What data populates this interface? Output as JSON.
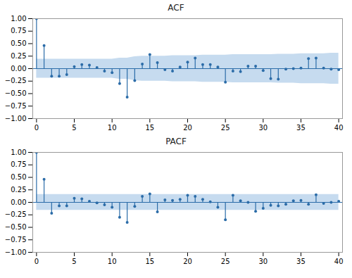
{
  "chart_data": [
    {
      "type": "stem",
      "title": "ACF",
      "x": [
        0,
        1,
        2,
        3,
        4,
        5,
        6,
        7,
        8,
        9,
        10,
        11,
        12,
        13,
        14,
        15,
        16,
        17,
        18,
        19,
        20,
        21,
        22,
        23,
        24,
        25,
        26,
        27,
        28,
        29,
        30,
        31,
        32,
        33,
        34,
        35,
        36,
        37,
        38,
        39,
        40
      ],
      "values": [
        1.0,
        0.46,
        -0.15,
        -0.15,
        -0.12,
        0.04,
        0.08,
        0.07,
        0.02,
        -0.05,
        -0.08,
        -0.3,
        -0.57,
        -0.24,
        0.09,
        0.28,
        0.12,
        -0.02,
        -0.05,
        0.03,
        0.13,
        0.21,
        0.08,
        0.08,
        0.03,
        -0.27,
        -0.05,
        -0.06,
        0.05,
        0.05,
        -0.04,
        -0.2,
        -0.21,
        -0.01,
        0.0,
        0.01,
        0.2,
        0.21,
        0.01,
        -0.01,
        -0.02
      ],
      "color": "#2b6ca8",
      "confidence_band": {
        "upper": [
          0.19,
          0.19,
          0.19,
          0.19,
          0.19,
          0.19,
          0.19,
          0.19,
          0.19,
          0.19,
          0.19,
          0.21,
          0.21,
          0.24,
          0.25,
          0.25,
          0.25,
          0.25,
          0.26,
          0.26,
          0.26,
          0.26,
          0.27,
          0.27,
          0.27,
          0.27,
          0.28,
          0.28,
          0.28,
          0.28,
          0.28,
          0.28,
          0.29,
          0.29,
          0.29,
          0.3,
          0.3,
          0.3,
          0.3,
          0.31,
          0.31
        ],
        "lower": [
          -0.19,
          -0.19,
          -0.19,
          -0.19,
          -0.19,
          -0.19,
          -0.19,
          -0.19,
          -0.19,
          -0.19,
          -0.19,
          -0.21,
          -0.21,
          -0.24,
          -0.25,
          -0.25,
          -0.25,
          -0.25,
          -0.26,
          -0.26,
          -0.26,
          -0.26,
          -0.27,
          -0.27,
          -0.27,
          -0.27,
          -0.28,
          -0.28,
          -0.28,
          -0.28,
          -0.28,
          -0.28,
          -0.29,
          -0.29,
          -0.29,
          -0.3,
          -0.3,
          -0.3,
          -0.3,
          -0.31,
          -0.31
        ],
        "color": "#c6dbef"
      },
      "xlim": [
        -0.5,
        40.5
      ],
      "xticks": [
        0,
        5,
        10,
        15,
        20,
        25,
        30,
        35,
        40
      ],
      "ylim": [
        -1.0,
        1.0
      ],
      "yticks": [
        {
          "value": -1.0,
          "label": "−1.00"
        },
        {
          "value": -0.75,
          "label": "−0.75"
        },
        {
          "value": -0.5,
          "label": "−0.50"
        },
        {
          "value": -0.25,
          "label": "−0.25"
        },
        {
          "value": 0.0,
          "label": "0.00"
        },
        {
          "value": 0.25,
          "label": "0.25"
        },
        {
          "value": 0.5,
          "label": "0.50"
        },
        {
          "value": 0.75,
          "label": "0.75"
        },
        {
          "value": 1.0,
          "label": "1.00"
        }
      ],
      "grid": false
    },
    {
      "type": "stem",
      "title": "PACF",
      "x": [
        0,
        1,
        2,
        3,
        4,
        5,
        6,
        7,
        8,
        9,
        10,
        11,
        12,
        13,
        14,
        15,
        16,
        17,
        18,
        19,
        20,
        21,
        22,
        23,
        24,
        25,
        26,
        27,
        28,
        29,
        30,
        31,
        32,
        33,
        34,
        35,
        36,
        37,
        38,
        39,
        40
      ],
      "values": [
        1.0,
        0.46,
        -0.22,
        -0.07,
        -0.07,
        0.08,
        0.07,
        0.02,
        -0.01,
        -0.05,
        -0.1,
        -0.3,
        -0.4,
        -0.08,
        0.12,
        0.17,
        -0.19,
        0.05,
        0.04,
        0.06,
        0.14,
        0.12,
        0.06,
        0.01,
        -0.1,
        -0.35,
        0.14,
        0.03,
        0.0,
        -0.18,
        -0.12,
        -0.06,
        -0.07,
        -0.04,
        0.03,
        0.04,
        -0.04,
        0.15,
        -0.02,
        0.0,
        0.02
      ],
      "color": "#2b6ca8",
      "confidence_band": {
        "upper": [
          0.16,
          0.16,
          0.16,
          0.16,
          0.16,
          0.16,
          0.16,
          0.16,
          0.16,
          0.16,
          0.16,
          0.16,
          0.16,
          0.16,
          0.16,
          0.16,
          0.16,
          0.16,
          0.16,
          0.16,
          0.16,
          0.16,
          0.16,
          0.16,
          0.16,
          0.16,
          0.16,
          0.16,
          0.16,
          0.16,
          0.16,
          0.16,
          0.16,
          0.16,
          0.16,
          0.16,
          0.16,
          0.16,
          0.16,
          0.16,
          0.16
        ],
        "lower": [
          -0.16,
          -0.16,
          -0.16,
          -0.16,
          -0.16,
          -0.16,
          -0.16,
          -0.16,
          -0.16,
          -0.16,
          -0.16,
          -0.16,
          -0.16,
          -0.16,
          -0.16,
          -0.16,
          -0.16,
          -0.16,
          -0.16,
          -0.16,
          -0.16,
          -0.16,
          -0.16,
          -0.16,
          -0.16,
          -0.16,
          -0.16,
          -0.16,
          -0.16,
          -0.16,
          -0.16,
          -0.16,
          -0.16,
          -0.16,
          -0.16,
          -0.16,
          -0.16,
          -0.16,
          -0.16,
          -0.16,
          -0.16
        ],
        "color": "#c6dbef"
      },
      "xlim": [
        -0.5,
        40.5
      ],
      "xticks": [
        0,
        5,
        10,
        15,
        20,
        25,
        30,
        35,
        40
      ],
      "ylim": [
        -1.0,
        1.0
      ],
      "yticks": [
        {
          "value": -1.0,
          "label": "−1.00"
        },
        {
          "value": -0.75,
          "label": "−0.75"
        },
        {
          "value": -0.5,
          "label": "−0.50"
        },
        {
          "value": -0.25,
          "label": "−0.25"
        },
        {
          "value": 0.0,
          "label": "0.00"
        },
        {
          "value": 0.25,
          "label": "0.25"
        },
        {
          "value": 0.5,
          "label": "0.50"
        },
        {
          "value": 0.75,
          "label": "0.75"
        },
        {
          "value": 1.0,
          "label": "1.00"
        }
      ],
      "grid": false
    }
  ]
}
